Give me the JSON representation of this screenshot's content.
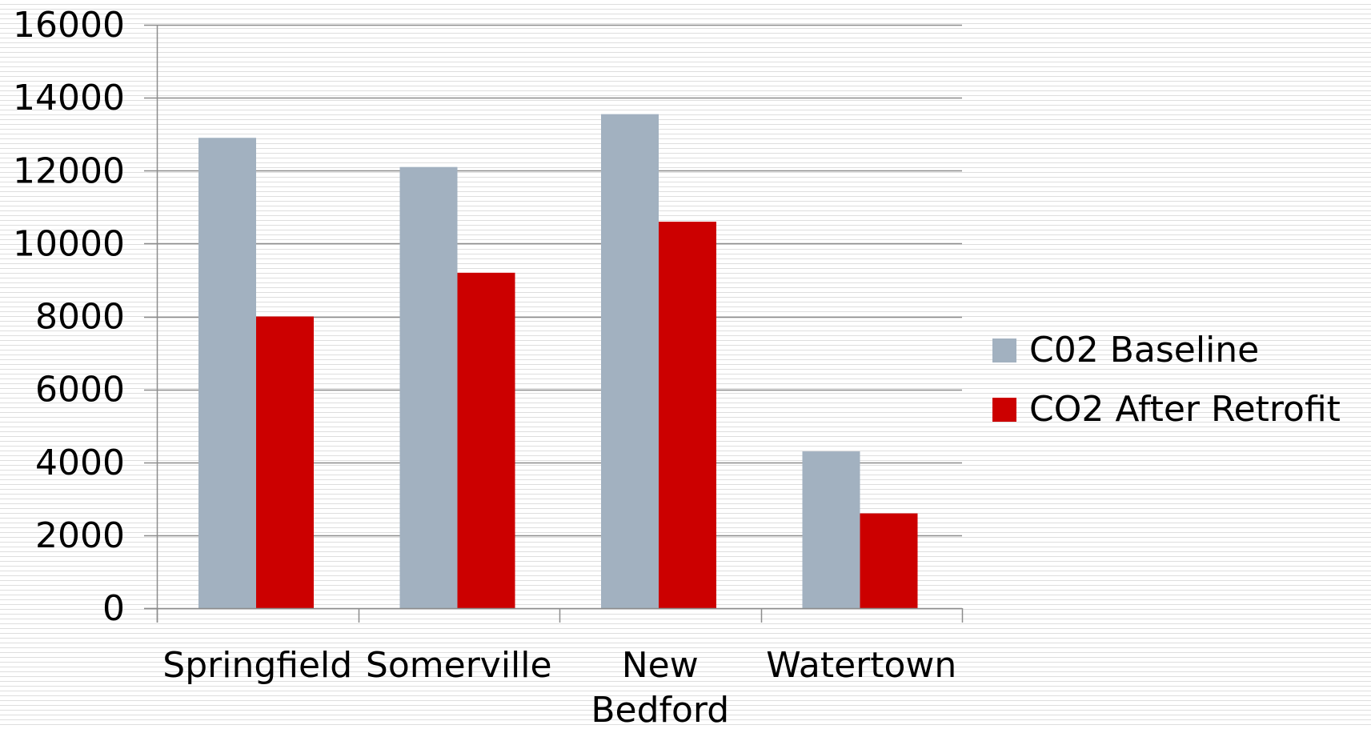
{
  "chart_data": {
    "type": "bar",
    "categories": [
      "Springfield",
      "Somerville",
      "New Bedford",
      "Watertown"
    ],
    "series": [
      {
        "name": "C02 Baseline",
        "values": [
          12900,
          12100,
          13550,
          4300
        ],
        "color": "#a2b1c0"
      },
      {
        "name": "CO2 After Retrofit",
        "values": [
          8000,
          9200,
          10600,
          2600
        ],
        "color": "#cc0000"
      }
    ],
    "ylim": [
      0,
      16000
    ],
    "yticks": [
      0,
      2000,
      4000,
      6000,
      8000,
      10000,
      12000,
      14000,
      16000
    ],
    "grid": true,
    "legend_position": "right"
  }
}
